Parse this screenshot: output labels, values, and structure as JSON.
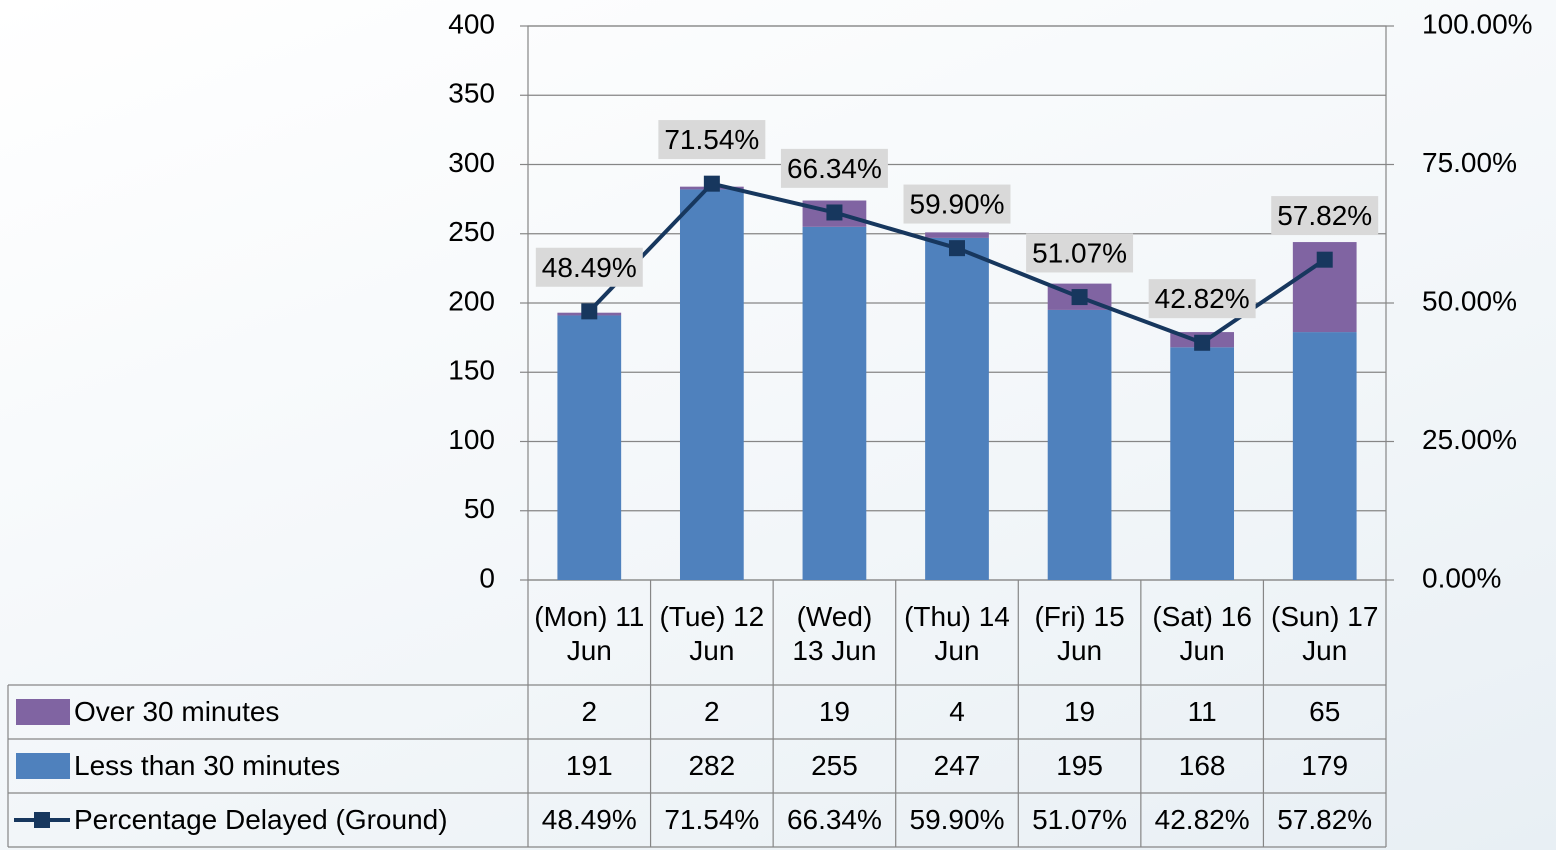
{
  "chart_data": {
    "type": "bar",
    "categories": [
      "(Mon) 11 Jun",
      "(Tue) 12 Jun",
      "(Wed) 13 Jun",
      "(Thu) 14 Jun",
      "(Fri) 15 Jun",
      "(Sat) 16 Jun",
      "(Sun) 17 Jun"
    ],
    "series": [
      {
        "name": "Over 30 minutes",
        "color": "#8064a2",
        "type": "bar",
        "values": [
          2,
          2,
          19,
          4,
          19,
          11,
          65
        ]
      },
      {
        "name": "Less than 30 minutes",
        "color": "#4f81bd",
        "type": "bar",
        "values": [
          191,
          282,
          255,
          247,
          195,
          168,
          179
        ]
      },
      {
        "name": "Percentage Delayed (Ground)",
        "color": "#17375e",
        "type": "line",
        "axis": "y2",
        "values": [
          48.49,
          71.54,
          66.34,
          59.9,
          51.07,
          42.82,
          57.82
        ],
        "value_labels": [
          "48.49%",
          "71.54%",
          "66.34%",
          "59.90%",
          "51.07%",
          "42.82%",
          "57.82%"
        ]
      }
    ],
    "ylim": [
      0,
      400
    ],
    "yticks": [
      0,
      50,
      100,
      150,
      200,
      250,
      300,
      350,
      400
    ],
    "y2lim": [
      0,
      100
    ],
    "y2ticks": [
      {
        "value": 0,
        "label": "0.00%"
      },
      {
        "value": 25,
        "label": "25.00%"
      },
      {
        "value": 50,
        "label": "50.00%"
      },
      {
        "value": 75,
        "label": "75.00%"
      },
      {
        "value": 100,
        "label": "100.00%"
      }
    ],
    "grid": true,
    "stacked": true,
    "data_table": true
  }
}
